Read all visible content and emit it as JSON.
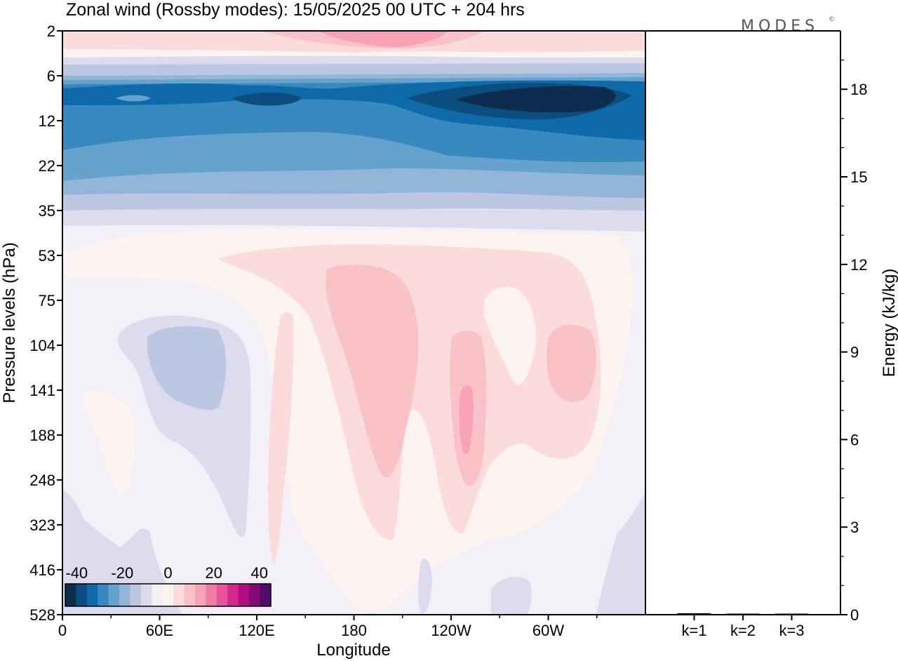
{
  "header": {
    "title": "Zonal wind (Rossby modes):  15/05/2025  00 UTC  + 204 hrs",
    "logo": "MODES",
    "logo_mark": "©"
  },
  "chart_data": [
    {
      "type": "heatmap",
      "title": "Zonal wind (Rossby modes):  15/05/2025  00 UTC  + 204 hrs",
      "xlabel": "Longitude",
      "ylabel": "Pressure levels (hPa)",
      "x_ticks": [
        "0",
        "60E",
        "120E",
        "180",
        "120W",
        "60W"
      ],
      "x_tick_values": [
        0,
        60,
        120,
        180,
        240,
        300
      ],
      "xlim": [
        0,
        360
      ],
      "y_ticks": [
        "2",
        "6",
        "12",
        "22",
        "35",
        "53",
        "75",
        "104",
        "141",
        "188",
        "248",
        "323",
        "416",
        "528"
      ],
      "y_levels": [
        2,
        6,
        12,
        22,
        35,
        53,
        75,
        104,
        141,
        188,
        248,
        323,
        416,
        528
      ],
      "ylim": [
        2,
        528
      ],
      "colorbar": {
        "ticks": [
          "-40",
          "-20",
          "0",
          "20",
          "40"
        ],
        "tick_values": [
          -40,
          -20,
          0,
          20,
          40
        ],
        "range": [
          -45,
          45
        ],
        "colors": [
          "#0c2d4e",
          "#0b4d7f",
          "#0f6aa9",
          "#3889c0",
          "#66a3cc",
          "#93b5d7",
          "#bcc7e1",
          "#dcdcee",
          "#f3f0f7",
          "#fdf3f0",
          "#fcdcdb",
          "#f9c2c7",
          "#f7a2b7",
          "#f07ba3",
          "#e8519b",
          "#d22a8c",
          "#b0107f",
          "#840a73",
          "#4f0c68"
        ]
      },
      "field_description": [
        {
          "levels": "2-4",
          "value_range": [
            0,
            15
          ],
          "note": "weak westerly, pink max near 180-210"
        },
        {
          "levels": "6-22",
          "value_range": [
            -35,
            -10
          ],
          "note": "strong easterly jet, core near 8-10 hPa, minimum near 60W-90W"
        },
        {
          "levels": "22-35",
          "value_range": [
            -10,
            0
          ],
          "note": "weak easterly"
        },
        {
          "levels": "53-248",
          "value_range": [
            0,
            20
          ],
          "note": "westerly maxima near 180 and 125W"
        },
        {
          "levels": "104-188",
          "value_range": [
            -8,
            0
          ],
          "note": "weak easterly near 45E-90E"
        }
      ]
    },
    {
      "type": "bar",
      "categories": [
        "k=1",
        "k=2",
        "k=3"
      ],
      "values": [
        0.05,
        0.02,
        0.02
      ],
      "ylabel": "Energy (kJ/kg)",
      "ylim": [
        0,
        20
      ],
      "y_ticks": [
        0,
        3,
        6,
        9,
        12,
        15,
        18
      ],
      "bar_color": "#000000"
    }
  ]
}
